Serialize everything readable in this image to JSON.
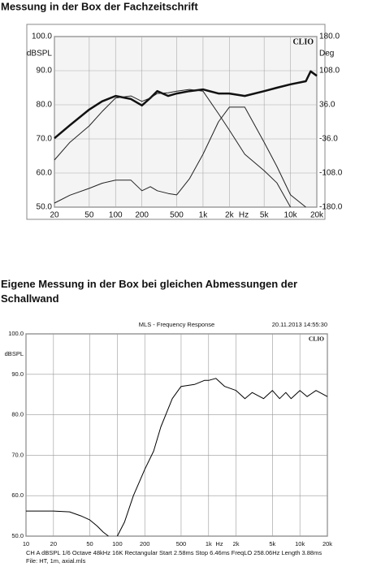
{
  "chart_data": [
    {
      "type": "line",
      "title": "Messung in der Box der Fachzeitschrift",
      "brand": "CLIO",
      "y_label": "dBSPL",
      "y2_label": "Deg",
      "x_unit": "Hz",
      "x_scale": "log",
      "grid": true,
      "x": [
        20,
        30,
        50,
        70,
        100,
        150,
        200,
        250,
        300,
        400,
        500,
        700,
        1000,
        1500,
        2000,
        3000,
        5000,
        7000,
        10000,
        15000,
        17000,
        20000
      ],
      "series": [
        {
          "color": "#111111",
          "width": 2.5,
          "values": [
            70.2,
            74,
            78.6,
            81,
            82.6,
            81.7,
            79.8,
            82,
            84,
            82.6,
            83.3,
            84,
            84.5,
            83.3,
            83.3,
            82.6,
            84,
            85,
            86,
            86.9,
            89.8,
            88.5
          ]
        },
        {
          "color": "#222222",
          "width": 1,
          "values": [
            63.8,
            69,
            73.8,
            78,
            82,
            82.6,
            81,
            82,
            83.3,
            83.5,
            84,
            84.5,
            84,
            77.4,
            72.6,
            65.5,
            60.7,
            57.1,
            50,
            null,
            null,
            null
          ]
        },
        {
          "color": "#222222",
          "width": 1,
          "values": [
            51.2,
            53.5,
            55.5,
            57,
            57.9,
            57.9,
            54.8,
            56,
            54.8,
            54,
            53.6,
            58.3,
            65.5,
            75,
            79.3,
            79.3,
            69,
            61.9,
            53.6,
            50,
            null,
            null
          ]
        }
      ],
      "xlim": [
        20,
        20000
      ],
      "xticks": [
        20,
        50,
        100,
        200,
        500,
        {
          "value": 1000,
          "label": "1k"
        },
        {
          "value": 2000,
          "label": "2k"
        },
        {
          "value": 5000,
          "label": "5k"
        },
        {
          "value": 10000,
          "label": "10k"
        },
        {
          "value": 20000,
          "label": "20k"
        }
      ],
      "ylim": [
        50,
        100
      ],
      "yticks": [
        {
          "value": 100,
          "label": "100.0"
        },
        {
          "value": 90,
          "label": "90.0"
        },
        {
          "value": 80,
          "label": "80.0"
        },
        {
          "value": 70,
          "label": "70.0"
        },
        {
          "value": 60,
          "label": "60.0"
        },
        {
          "value": 50,
          "label": "50.0"
        }
      ],
      "y2lim": [
        -180,
        180
      ],
      "y2ticks": [
        {
          "value": 180,
          "label": "180.0"
        },
        {
          "value": 108,
          "label": "108.0"
        },
        {
          "value": 36,
          "label": "36.0"
        },
        {
          "value": -36,
          "label": "-36.0"
        },
        {
          "value": -108,
          "label": "-108.0"
        },
        {
          "value": -180,
          "label": "-180.0"
        }
      ]
    },
    {
      "type": "line",
      "title": "Eigene Messung in der Box bei gleichen Abmessungen der Schallwand",
      "subtitle": "MLS - Frequency Response",
      "date": "20.11.2013 14:55:30",
      "brand": "CLIO",
      "y_label": "dBSPL",
      "x_unit": "Hz",
      "footer": [
        "CH A   dBSPL   1/6 Octave   48kHz   16K   Rectangular   Start 2.58ms   Stop 6.46ms   FreqLO 258.06Hz   Length 3.88ms",
        "File: HT, 1m, axial.mls"
      ],
      "x_scale": "log",
      "grid": true,
      "x": [
        10,
        20,
        30,
        40,
        50,
        60,
        70,
        80,
        90,
        100,
        120,
        150,
        200,
        250,
        300,
        400,
        500,
        700,
        900,
        1000,
        1200,
        1500,
        2000,
        2500,
        3000,
        4000,
        5000,
        6000,
        7000,
        8000,
        10000,
        12000,
        15000,
        20000
      ],
      "series": [
        {
          "color": "#000000",
          "width": 1,
          "values": [
            56.2,
            56.2,
            56,
            55,
            54,
            52.5,
            51,
            50,
            null,
            50,
            53.5,
            60,
            66.5,
            71,
            77,
            84,
            87,
            87.5,
            88.5,
            88.5,
            89,
            87,
            86,
            84,
            85.5,
            84,
            86,
            84,
            85.5,
            84,
            86,
            84.5,
            86,
            84.5
          ]
        }
      ],
      "xlim": [
        10,
        20000
      ],
      "xticks": [
        10,
        20,
        50,
        100,
        200,
        500,
        {
          "value": 1000,
          "label": "1k"
        },
        {
          "value": 2000,
          "label": "2k"
        },
        {
          "value": 5000,
          "label": "5k"
        },
        {
          "value": 10000,
          "label": "10k"
        },
        {
          "value": 20000,
          "label": "20k"
        }
      ],
      "ylim": [
        50,
        100
      ],
      "yticks": [
        {
          "value": 100,
          "label": "100.0"
        },
        {
          "value": 90,
          "label": "90.0"
        },
        {
          "value": 80,
          "label": "80.0"
        },
        {
          "value": 70,
          "label": "70.0"
        },
        {
          "value": 60,
          "label": "60.0"
        },
        {
          "value": 50,
          "label": "50.0"
        }
      ]
    }
  ]
}
